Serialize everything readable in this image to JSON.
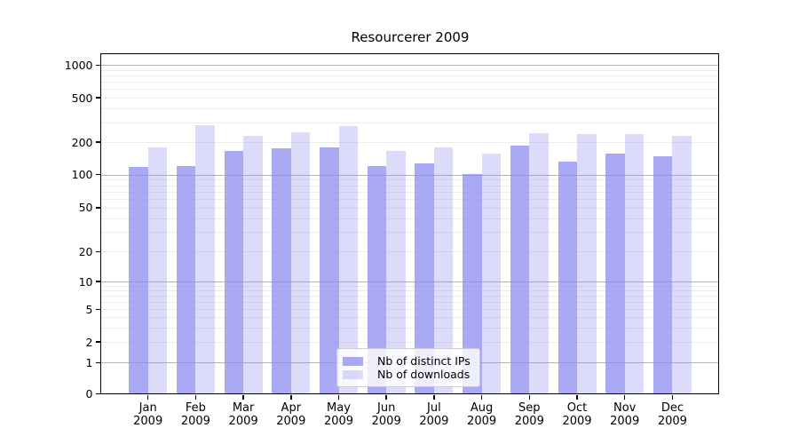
{
  "chart_data": {
    "type": "bar",
    "title": "Resourcerer 2009",
    "categories": [
      "Jan 2009",
      "Feb 2009",
      "Mar 2009",
      "Apr 2009",
      "May 2009",
      "Jun 2009",
      "Jul 2009",
      "Aug 2009",
      "Sep 2009",
      "Oct 2009",
      "Nov 2009",
      "Dec 2009"
    ],
    "series": [
      {
        "name": "Nb of distinct IPs",
        "values": [
          118,
          120,
          165,
          175,
          178,
          119,
          128,
          102,
          186,
          132,
          157,
          147
        ]
      },
      {
        "name": "Nb of downloads",
        "values": [
          180,
          285,
          227,
          245,
          277,
          165,
          178,
          155,
          240,
          235,
          236,
          227
        ]
      }
    ],
    "yticks": [
      0,
      1,
      2,
      5,
      10,
      20,
      50,
      100,
      200,
      500,
      1000
    ],
    "xlabel": "",
    "ylabel": "",
    "yscale": "log-like with zero baseline",
    "ylim": [
      0,
      1100
    ],
    "grid": "horizontal major and minor gridlines",
    "legend_position": "lower center inside plot"
  },
  "style": {
    "bar_colors": [
      "rgba(140,140,240,0.75)",
      "rgba(140,140,240,0.3)"
    ],
    "major_grid_color": "#b3b3b3",
    "minor_grid_color": "#ececec",
    "axis_color": "#000000",
    "background_color": "#ffffff",
    "legend_border_color": "#cccccc"
  }
}
